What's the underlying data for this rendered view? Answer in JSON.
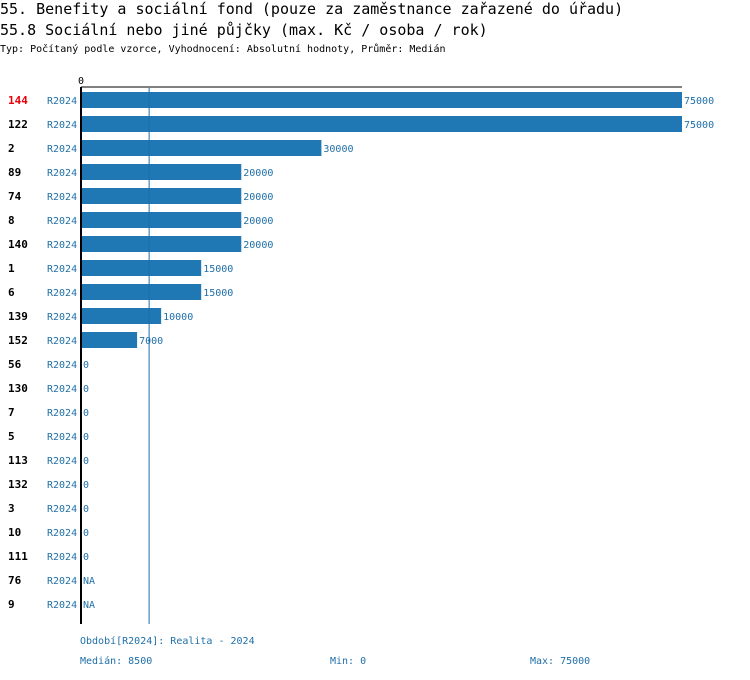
{
  "header": {
    "title1": "55. Benefity a sociální fond (pouze za zaměstnance zařazené do úřadu)",
    "title2": "55.8 Sociální nebo jiné půjčky (max. Kč / osoba / rok)",
    "subtitle": "Typ: Počítaný podle vzorce, Vyhodnocení: Absolutní hodnoty, Průměr: Medián"
  },
  "colors": {
    "bar": "#1f77b4",
    "text_blue": "#1f6fa8",
    "highlight": "#e8000b",
    "axis": "#000000",
    "median_line": "#1f6fa8"
  },
  "chart_data": {
    "type": "bar",
    "orientation": "horizontal",
    "axis_zero_label": "0",
    "xlim": [
      0,
      75000
    ],
    "median": 8500,
    "highlight_category": "144",
    "rows": [
      {
        "id": "144",
        "period": "R2024",
        "value": 75000,
        "label": "75000"
      },
      {
        "id": "122",
        "period": "R2024",
        "value": 75000,
        "label": "75000"
      },
      {
        "id": "2",
        "period": "R2024",
        "value": 30000,
        "label": "30000"
      },
      {
        "id": "89",
        "period": "R2024",
        "value": 20000,
        "label": "20000"
      },
      {
        "id": "74",
        "period": "R2024",
        "value": 20000,
        "label": "20000"
      },
      {
        "id": "8",
        "period": "R2024",
        "value": 20000,
        "label": "20000"
      },
      {
        "id": "140",
        "period": "R2024",
        "value": 20000,
        "label": "20000"
      },
      {
        "id": "1",
        "period": "R2024",
        "value": 15000,
        "label": "15000"
      },
      {
        "id": "6",
        "period": "R2024",
        "value": 15000,
        "label": "15000"
      },
      {
        "id": "139",
        "period": "R2024",
        "value": 10000,
        "label": "10000"
      },
      {
        "id": "152",
        "period": "R2024",
        "value": 7000,
        "label": "7000"
      },
      {
        "id": "56",
        "period": "R2024",
        "value": 0,
        "label": "0"
      },
      {
        "id": "130",
        "period": "R2024",
        "value": 0,
        "label": "0"
      },
      {
        "id": "7",
        "period": "R2024",
        "value": 0,
        "label": "0"
      },
      {
        "id": "5",
        "period": "R2024",
        "value": 0,
        "label": "0"
      },
      {
        "id": "113",
        "period": "R2024",
        "value": 0,
        "label": "0"
      },
      {
        "id": "132",
        "period": "R2024",
        "value": 0,
        "label": "0"
      },
      {
        "id": "3",
        "period": "R2024",
        "value": 0,
        "label": "0"
      },
      {
        "id": "10",
        "period": "R2024",
        "value": 0,
        "label": "0"
      },
      {
        "id": "111",
        "period": "R2024",
        "value": 0,
        "label": "0"
      },
      {
        "id": "76",
        "period": "R2024",
        "value": null,
        "label": "NA"
      },
      {
        "id": "9",
        "period": "R2024",
        "value": null,
        "label": "NA"
      }
    ]
  },
  "footer": {
    "period": "Období[R2024]: Realita - 2024",
    "median": "Medián: 8500",
    "min": "Min: 0",
    "max": "Max: 75000"
  }
}
